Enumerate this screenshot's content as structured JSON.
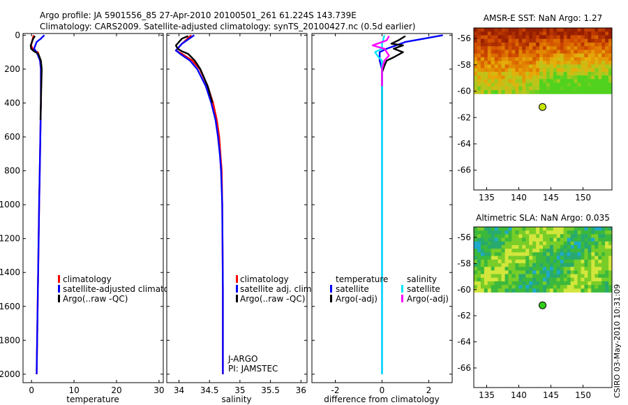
{
  "header": {
    "line1": "Argo profile: JA 5901556_85 27-Apr-2010 20100501_261 61.224S 143.739E",
    "line2": "Climatology: CARS2009. Satellite-adjusted climatology: synTS_20100427.nc (0.5d earlier)"
  },
  "footer": {
    "stamp": "CSIRO 03-May-2010 10:31:09"
  },
  "colors": {
    "climatology": "#ff0000",
    "satellite": "#0000ff",
    "argo": "#000000",
    "sal_satellite": "#00e6ff",
    "sal_argo": "#ff00ff",
    "map_dot": "#c8e600"
  },
  "panels": {
    "temperature": {
      "xlabel": "temperature",
      "legend": [
        "climatology",
        "satellite-adjusted climatolog",
        "Argo(..raw -QC)"
      ]
    },
    "salinity": {
      "xlabel": "salinity",
      "legend": [
        "climatology",
        "satellite adj. clim.",
        "Argo(..raw -QC)"
      ],
      "note1": "J-ARGO",
      "note2": "PI: JAMSTEC"
    },
    "difference": {
      "xlabel": "difference from climatology",
      "legend_head_temp": "temperature",
      "legend_head_sal": "salinity",
      "legend_temp": [
        "satellite",
        "Argo(-adj)"
      ],
      "legend_sal": [
        "satellite",
        "Argo(-adj)"
      ]
    },
    "sst_map": {
      "title": "AMSR-E SST: NaN Argo: 1.27"
    },
    "sla_map": {
      "title": "Altimetric SLA: NaN Argo: 0.035"
    }
  },
  "chart_data": [
    {
      "type": "line",
      "name": "temperature",
      "ylim": [
        2050,
        -10
      ],
      "xlim": [
        -2,
        31
      ],
      "xticks": [
        0,
        10,
        20,
        30
      ],
      "yticks": [
        0,
        200,
        400,
        600,
        800,
        1000,
        1200,
        1400,
        1600,
        1800,
        2000
      ],
      "xlabel": "temperature",
      "series": [
        {
          "name": "climatology",
          "depth": [
            0,
            20,
            60,
            90,
            100,
            150,
            200,
            400,
            700,
            1000,
            1500,
            2000
          ],
          "values": [
            0.5,
            0.3,
            -0.1,
            0.5,
            1.5,
            2.0,
            2.2,
            2.2,
            2.0,
            1.8,
            1.5,
            1.2
          ]
        },
        {
          "name": "satellite-adjusted climatolog",
          "depth": [
            0,
            20,
            40,
            60,
            80,
            100,
            150,
            200,
            400,
            700,
            1000,
            1500,
            2000
          ],
          "values": [
            3.0,
            2.2,
            1.2,
            0.9,
            0.6,
            1.2,
            2.0,
            2.2,
            2.2,
            2.0,
            1.8,
            1.5,
            1.2
          ]
        },
        {
          "name": "Argo(..raw -QC)",
          "depth": [
            5,
            20,
            40,
            60,
            80,
            95,
            110,
            150,
            200,
            300,
            400,
            500
          ],
          "values": [
            0.8,
            0.4,
            0.1,
            -0.2,
            -0.1,
            0.6,
            1.6,
            2.2,
            2.4,
            2.3,
            2.2,
            2.1
          ]
        }
      ]
    },
    {
      "type": "line",
      "name": "salinity",
      "ylim": [
        2050,
        -10
      ],
      "xlim": [
        33.8,
        36.1
      ],
      "xticks": [
        34,
        34.5,
        35,
        35.5,
        36
      ],
      "yticks": [
        0,
        200,
        400,
        600,
        800,
        1000,
        1200,
        1400,
        1600,
        1800,
        2000
      ],
      "xlabel": "salinity",
      "series": [
        {
          "name": "climatology",
          "depth": [
            0,
            50,
            90,
            110,
            150,
            200,
            300,
            400,
            500,
            600,
            700,
            800,
            1000,
            1500,
            2000
          ],
          "values": [
            34.2,
            34.05,
            33.95,
            34.05,
            34.22,
            34.34,
            34.47,
            34.56,
            34.62,
            34.66,
            34.68,
            34.7,
            34.71,
            34.72,
            34.72
          ]
        },
        {
          "name": "satellite adj. clim.",
          "depth": [
            0,
            50,
            90,
            110,
            150,
            200,
            300,
            400,
            500,
            600,
            700,
            800,
            1000,
            1500,
            2000
          ],
          "values": [
            34.25,
            34.05,
            33.95,
            34.02,
            34.18,
            34.3,
            34.44,
            34.53,
            34.6,
            34.64,
            34.67,
            34.69,
            34.71,
            34.72,
            34.72
          ]
        },
        {
          "name": "Argo(..raw -QC)",
          "depth": [
            5,
            20,
            40,
            60,
            80,
            95,
            110,
            150,
            200,
            300,
            400
          ],
          "values": [
            34.15,
            34.05,
            34.0,
            33.95,
            33.98,
            34.05,
            34.15,
            34.26,
            34.35,
            34.47,
            34.55
          ]
        }
      ]
    },
    {
      "type": "line",
      "name": "difference",
      "ylim": [
        2050,
        -10
      ],
      "xlim": [
        -3,
        3
      ],
      "xticks": [
        -2,
        0,
        2
      ],
      "yticks": [
        0,
        200,
        400,
        600,
        800,
        1000,
        1200,
        1400,
        1600,
        1800,
        2000
      ],
      "xlabel": "difference from climatology",
      "series": [
        {
          "name": "temperature satellite",
          "depth": [
            0,
            20,
            40,
            60,
            80,
            100,
            150,
            200,
            300,
            500,
            800,
            1200,
            2000
          ],
          "values": [
            2.6,
            1.8,
            1.0,
            0.6,
            0.2,
            -0.1,
            -0.1,
            0.0,
            0.0,
            0.0,
            0.0,
            0.0,
            0.0
          ]
        },
        {
          "name": "temperature Argo(-adj)",
          "depth": [
            5,
            30,
            50,
            60,
            80,
            100,
            130,
            150,
            180,
            220,
            300,
            500
          ],
          "values": [
            1.0,
            0.7,
            0.4,
            0.9,
            0.5,
            0.9,
            0.5,
            0.2,
            0.1,
            0.0,
            0.0,
            0.0
          ]
        },
        {
          "name": "salinity satellite",
          "depth": [
            0,
            50,
            80,
            100,
            130,
            150,
            200,
            300,
            500,
            800,
            1200,
            2000
          ],
          "values": [
            0.1,
            0.0,
            0.0,
            -0.3,
            -0.15,
            0.0,
            0.0,
            0.0,
            0.0,
            0.0,
            0.0,
            0.0
          ]
        },
        {
          "name": "salinity Argo(-adj)",
          "depth": [
            5,
            30,
            60,
            80,
            100,
            120,
            150,
            200,
            300
          ],
          "values": [
            0.3,
            0.2,
            -0.4,
            0.1,
            0.2,
            0.3,
            0.1,
            0.0,
            0.0
          ]
        }
      ]
    },
    {
      "type": "heatmap",
      "name": "sst_map",
      "title": "AMSR-E SST: NaN Argo: 1.27",
      "xlim": [
        133,
        154.5
      ],
      "ylim": [
        -67.5,
        -55.2
      ],
      "xticks": [
        135,
        140,
        145,
        150
      ],
      "yticks": [
        -56,
        -58,
        -60,
        -62,
        -64,
        -66
      ],
      "data_extent_lat": [
        -60.2,
        -55.2
      ],
      "argo_point": [
        143.7,
        -61.2
      ]
    },
    {
      "type": "heatmap",
      "name": "sla_map",
      "title": "Altimetric SLA: NaN Argo: 0.035",
      "xlim": [
        133,
        154.5
      ],
      "ylim": [
        -67.5,
        -55.2
      ],
      "xticks": [
        135,
        140,
        145,
        150
      ],
      "yticks": [
        -56,
        -58,
        -60,
        -62,
        -64,
        -66
      ],
      "data_extent_lat": [
        -60.2,
        -55.2
      ],
      "argo_point": [
        143.7,
        -61.2
      ]
    }
  ]
}
